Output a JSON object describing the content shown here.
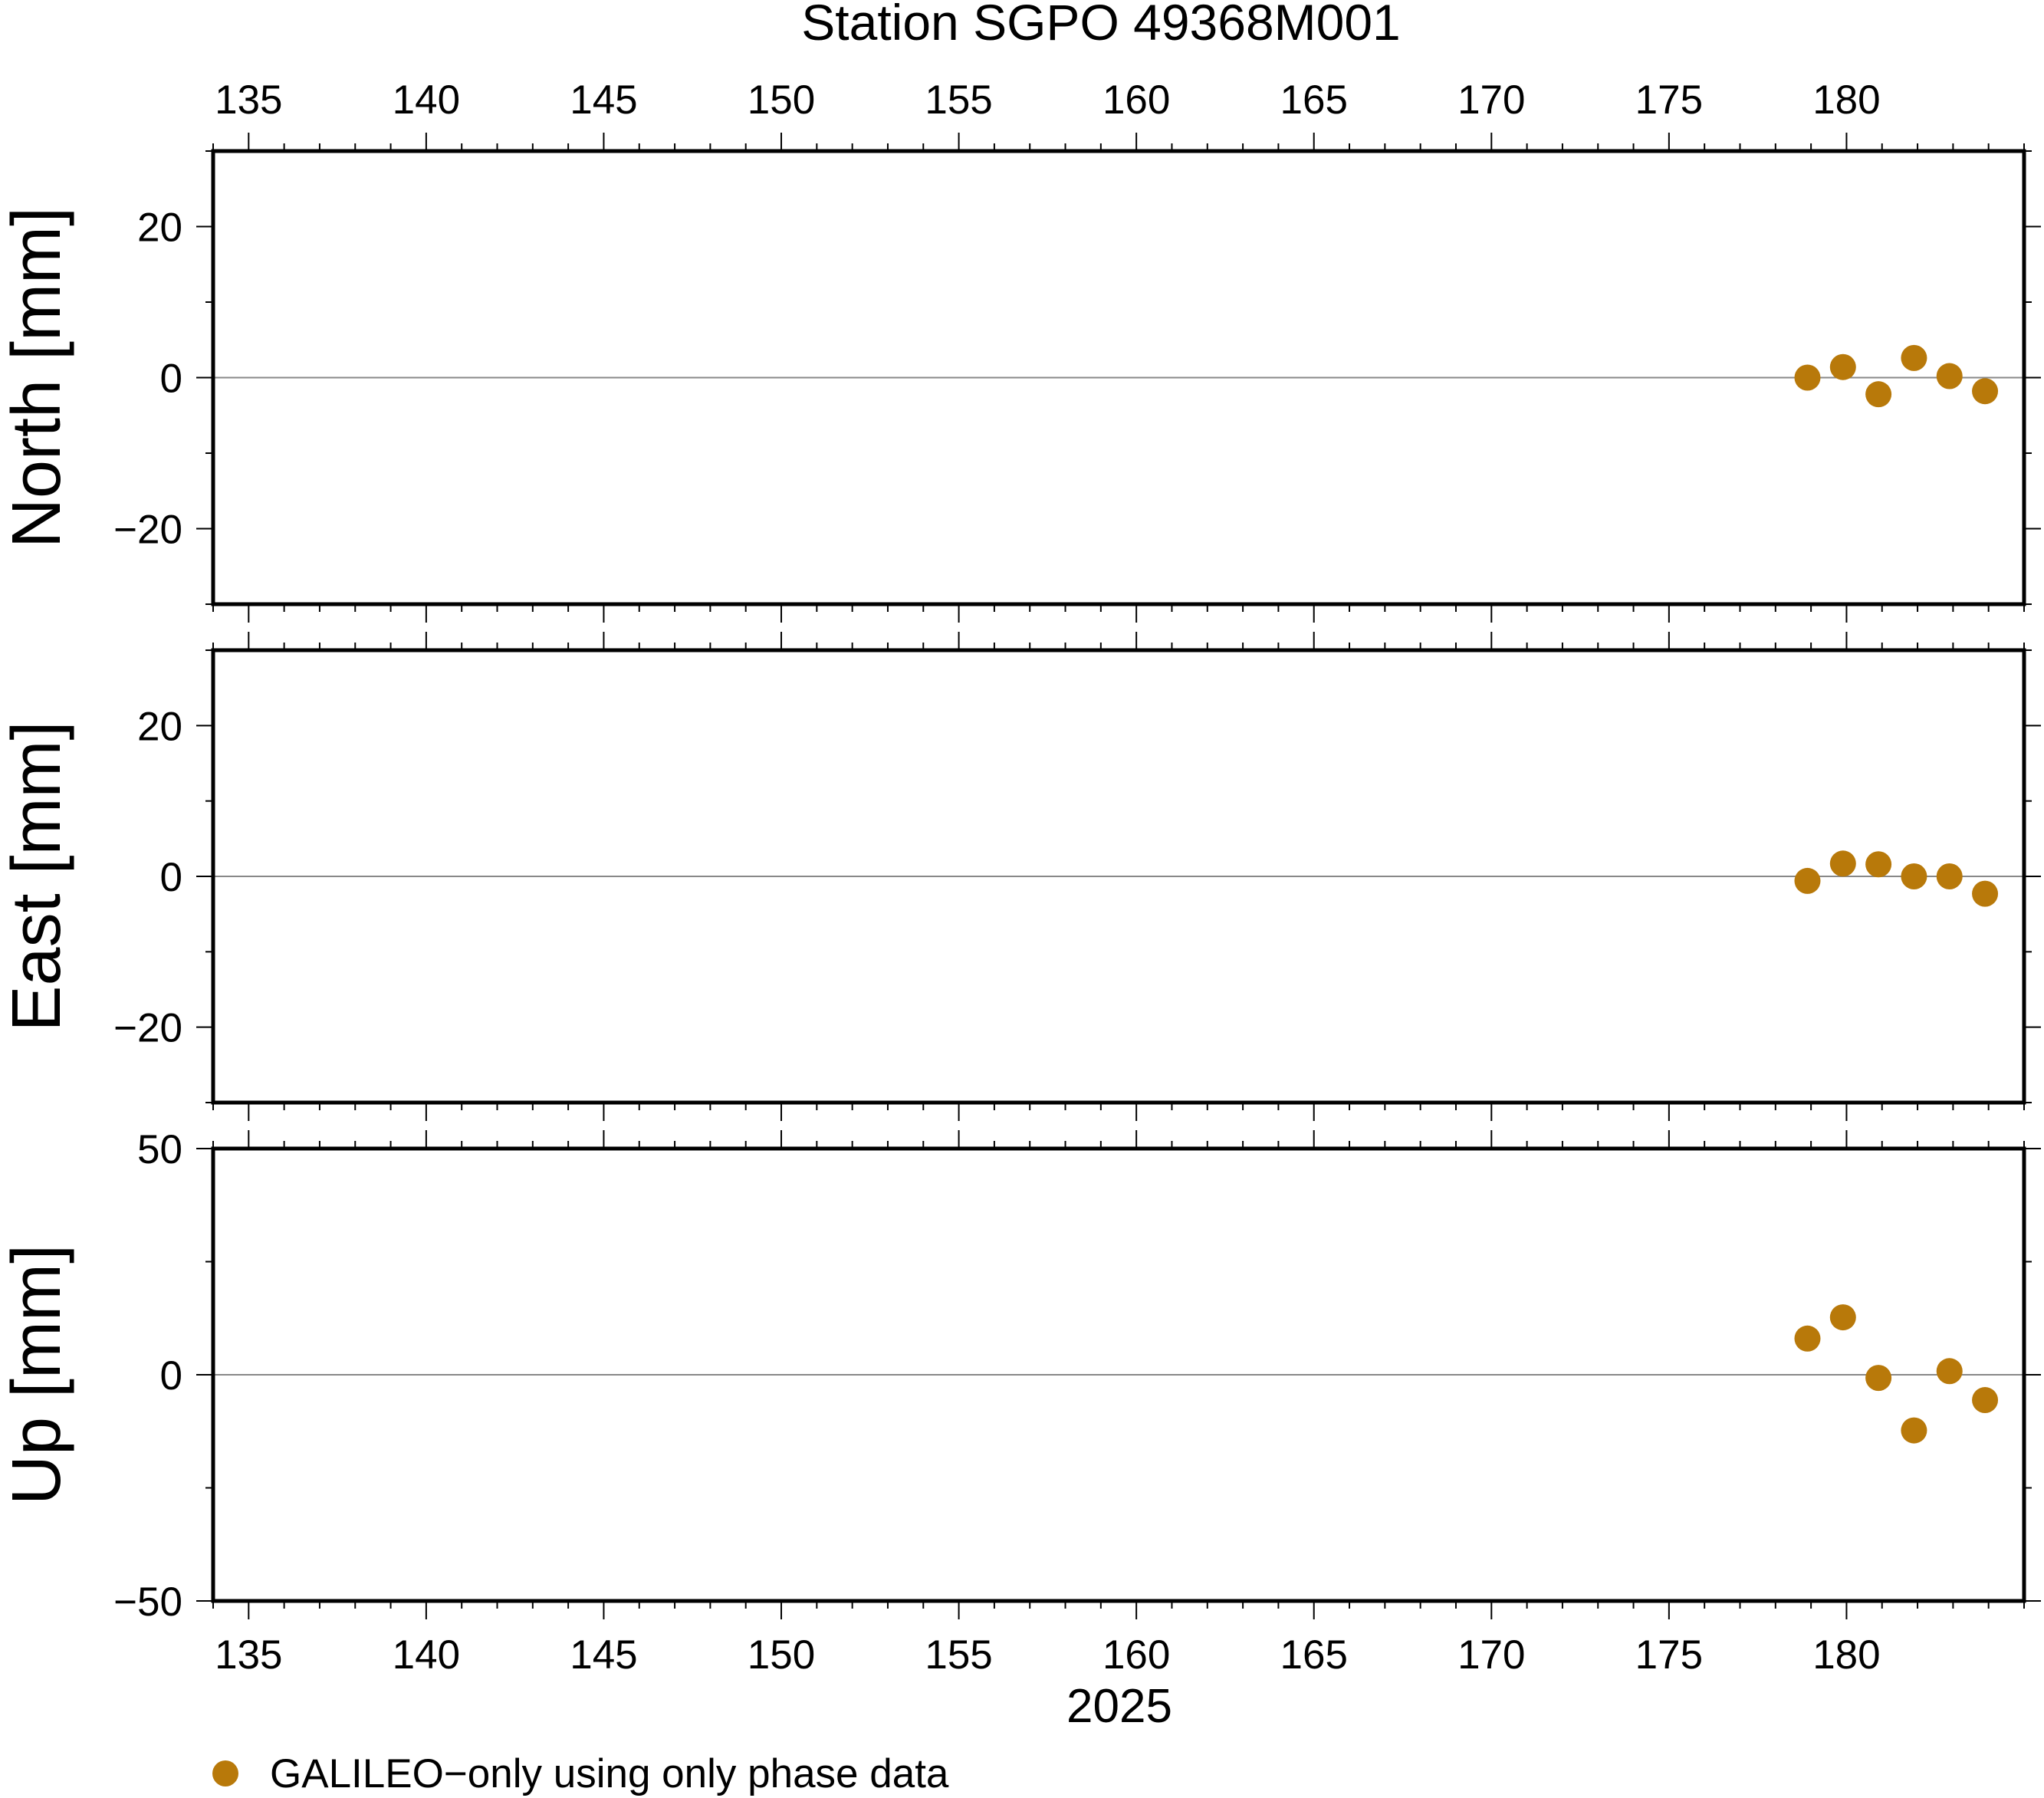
{
  "chart_data": {
    "type": "scatter",
    "title": "Station SGPO 49368M001",
    "xlabel": "2025",
    "xlim": [
      134,
      185
    ],
    "x_ticks": [
      135,
      140,
      145,
      150,
      155,
      160,
      165,
      170,
      175,
      180
    ],
    "x_tick_labels": [
      "135",
      "140",
      "145",
      "150",
      "155",
      "160",
      "165",
      "170",
      "175",
      "180"
    ],
    "point_color": "#b8790a",
    "legend": {
      "position": "bottom-left",
      "label": "GALILEO−only using only phase data"
    },
    "panels": [
      {
        "ylabel": "North [mm]",
        "ylim": [
          -30,
          30
        ],
        "y_ticks": [
          -20,
          0,
          20
        ],
        "y_tick_labels": [
          "−20",
          "0",
          "20"
        ],
        "zero_line": true,
        "series": [
          {
            "x": [
              178.9,
              179.9,
              180.9,
              181.9,
              182.9,
              183.9
            ],
            "y": [
              0.0,
              1.4,
              -2.2,
              2.6,
              0.2,
              -1.8
            ]
          }
        ]
      },
      {
        "ylabel": "East [mm]",
        "ylim": [
          -30,
          30
        ],
        "y_ticks": [
          -20,
          0,
          20
        ],
        "y_tick_labels": [
          "−20",
          "0",
          "20"
        ],
        "zero_line": true,
        "series": [
          {
            "x": [
              178.9,
              179.9,
              180.9,
              181.9,
              182.9,
              183.9
            ],
            "y": [
              -0.6,
              1.7,
              1.6,
              0.0,
              0.0,
              -2.3
            ]
          }
        ]
      },
      {
        "ylabel": "Up [mm]",
        "ylim": [
          -50,
          50
        ],
        "y_ticks": [
          -50,
          0,
          50
        ],
        "y_tick_labels": [
          "−50",
          "0",
          "50"
        ],
        "zero_line": true,
        "series": [
          {
            "x": [
              178.9,
              179.9,
              180.9,
              181.9,
              182.9,
              183.9
            ],
            "y": [
              8.0,
              12.7,
              -0.7,
              -12.3,
              0.8,
              -5.6
            ]
          }
        ]
      }
    ]
  }
}
